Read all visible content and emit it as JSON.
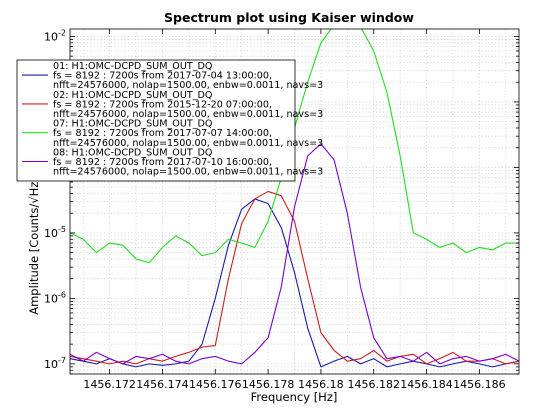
{
  "chart_data": {
    "type": "line",
    "title": "Spectrum plot using Kaiser window",
    "xlabel": "Frequency [Hz]",
    "ylabel": "Amplitude [Counts/√Hz]",
    "xlim": [
      1456.1705,
      1456.1875
    ],
    "ylim": [
      7e-08,
      0.013
    ],
    "yscale": "log",
    "grid": true,
    "legend_position": "top-left",
    "x_ticks": [
      {
        "value": 1456.172,
        "label": "1456.172"
      },
      {
        "value": 1456.174,
        "label": "1456.174"
      },
      {
        "value": 1456.176,
        "label": "1456.176"
      },
      {
        "value": 1456.178,
        "label": "1456.178"
      },
      {
        "value": 1456.18,
        "label": "1456.18"
      },
      {
        "value": 1456.182,
        "label": "1456.182"
      },
      {
        "value": 1456.184,
        "label": "1456.184"
      },
      {
        "value": 1456.186,
        "label": "1456.186"
      }
    ],
    "y_ticks": [
      {
        "value": 1e-07,
        "base": "10",
        "exp": "-7"
      },
      {
        "value": 1e-06,
        "base": "10",
        "exp": "-6"
      },
      {
        "value": 1e-05,
        "base": "10",
        "exp": "-5"
      },
      {
        "value": 0.0001,
        "base": "10",
        "exp": "-4"
      },
      {
        "value": 0.001,
        "base": "10",
        "exp": "-3"
      },
      {
        "value": 0.01,
        "base": "10",
        "exp": "-2"
      }
    ],
    "series": [
      {
        "name": "01: H1:OMC-DCPD_SUM_OUT_DQ",
        "legend_lines": [
          "01: H1:OMC-DCPD_SUM_OUT_DQ",
          "fs = 8192 : 7200s from 2017-07-04 13:00:00,",
          "nfft=24576000, nolap=1500.00, enbw=0.0011, navs=3"
        ],
        "color": "#1a1aa8",
        "x": [
          1456.1705,
          1456.171,
          1456.1715,
          1456.172,
          1456.1725,
          1456.173,
          1456.1735,
          1456.174,
          1456.1745,
          1456.175,
          1456.1755,
          1456.176,
          1456.1765,
          1456.177,
          1456.1775,
          1456.178,
          1456.1785,
          1456.179,
          1456.1795,
          1456.18,
          1456.1805,
          1456.181,
          1456.1815,
          1456.182,
          1456.1825,
          1456.183,
          1456.1835,
          1456.184,
          1456.1845,
          1456.185,
          1456.1855,
          1456.186,
          1456.1865,
          1456.187,
          1456.1875
        ],
        "values": [
          1.2e-07,
          1.1e-07,
          1e-07,
          1.2e-07,
          1e-07,
          9e-08,
          1e-07,
          9.5e-08,
          1e-07,
          1.1e-07,
          2e-07,
          1e-06,
          6.5e-06,
          2.3e-05,
          3.3e-05,
          2.8e-05,
          1.2e-05,
          2.5e-06,
          3.5e-07,
          9e-08,
          1.1e-07,
          1.3e-07,
          1e-07,
          1.2e-07,
          9e-08,
          1e-07,
          1.1e-07,
          1e-07,
          9e-08,
          1e-07,
          1.1e-07,
          1e-07,
          9e-08,
          1e-07,
          1.1e-07
        ]
      },
      {
        "name": "02: H1:OMC-DCPD_SUM_OUT_DQ",
        "legend_lines": [
          "02: H1:OMC-DCPD_SUM_OUT_DQ",
          "fs = 8192 : 7200s from 2015-12-20 07:00:00,",
          "nfft=24576000, nolap=1500.00, enbw=0.0011, navs=3"
        ],
        "color": "#c81e1e",
        "x": [
          1456.1705,
          1456.171,
          1456.1715,
          1456.172,
          1456.1725,
          1456.173,
          1456.1735,
          1456.174,
          1456.1745,
          1456.175,
          1456.1755,
          1456.176,
          1456.1765,
          1456.177,
          1456.1775,
          1456.178,
          1456.1785,
          1456.179,
          1456.1795,
          1456.18,
          1456.1805,
          1456.181,
          1456.1815,
          1456.182,
          1456.1825,
          1456.183,
          1456.1835,
          1456.184,
          1456.1845,
          1456.185,
          1456.1855,
          1456.186,
          1456.1865,
          1456.187,
          1456.1875
        ],
        "values": [
          1.3e-07,
          1.2e-07,
          1.1e-07,
          1e-07,
          1.1e-07,
          1e-07,
          1.2e-07,
          1.1e-07,
          1.3e-07,
          1.5e-07,
          1.8e-07,
          1.9e-07,
          2e-06,
          1.4e-05,
          3.3e-05,
          4.3e-05,
          3.7e-05,
          1.5e-05,
          2e-06,
          3e-07,
          1.6e-07,
          1.1e-07,
          1.2e-07,
          1.6e-07,
          1.1e-07,
          1.3e-07,
          1.4e-07,
          1e-07,
          1.2e-07,
          1.5e-07,
          1.1e-07,
          1.1e-07,
          1.2e-07,
          1e-07,
          1.1e-07
        ]
      },
      {
        "name": "07: H1:OMC-DCPD_SUM_OUT_DQ",
        "legend_lines": [
          "07: H1:OMC-DCPD_SUM_OUT_DQ",
          "fs = 8192 : 7200s from 2017-07-07 14:00:00,",
          "nfft=24576000, nolap=1500.00, enbw=0.0011, navs=3"
        ],
        "color": "#22dd22",
        "x": [
          1456.1705,
          1456.171,
          1456.1715,
          1456.172,
          1456.1725,
          1456.173,
          1456.1735,
          1456.174,
          1456.1745,
          1456.175,
          1456.1755,
          1456.176,
          1456.1765,
          1456.177,
          1456.1775,
          1456.178,
          1456.1785,
          1456.179,
          1456.1795,
          1456.18,
          1456.1805,
          1456.181,
          1456.1815,
          1456.182,
          1456.1825,
          1456.183,
          1456.1835,
          1456.184,
          1456.1845,
          1456.185,
          1456.1855,
          1456.186,
          1456.1865,
          1456.187,
          1456.1875
        ],
        "values": [
          1e-05,
          8e-06,
          5e-06,
          7e-06,
          6.5e-06,
          4e-06,
          3.5e-06,
          6e-06,
          9e-06,
          7e-06,
          4.5e-06,
          5e-06,
          8e-06,
          7e-06,
          6e-06,
          1.5e-05,
          7e-05,
          0.0004,
          0.002,
          0.008,
          0.015,
          0.019,
          0.014,
          0.006,
          0.0014,
          0.00015,
          1e-05,
          8e-06,
          6e-06,
          7e-06,
          5e-06,
          6e-06,
          5.5e-06,
          7e-06,
          7e-06
        ]
      },
      {
        "name": "08: H1:OMC-DCPD_SUM_OUT_DQ",
        "legend_lines": [
          "08: H1:OMC-DCPD_SUM_OUT_DQ",
          "fs = 8192 : 7200s from 2017-07-10 16:00:00,",
          "nfft=24576000, nolap=1500.00, enbw=0.0011, navs=3"
        ],
        "color": "#7a00cc",
        "x": [
          1456.1705,
          1456.171,
          1456.1715,
          1456.172,
          1456.1725,
          1456.173,
          1456.1735,
          1456.174,
          1456.1745,
          1456.175,
          1456.1755,
          1456.176,
          1456.1765,
          1456.177,
          1456.1775,
          1456.178,
          1456.1785,
          1456.179,
          1456.1795,
          1456.18,
          1456.1805,
          1456.181,
          1456.1815,
          1456.182,
          1456.1825,
          1456.183,
          1456.1835,
          1456.184,
          1456.1845,
          1456.185,
          1456.1855,
          1456.186,
          1456.1865,
          1456.187,
          1456.1875
        ],
        "values": [
          1.4e-07,
          1.1e-07,
          1.5e-07,
          1.2e-07,
          1e-07,
          1.3e-07,
          1.2e-07,
          1.4e-07,
          1.1e-07,
          1e-07,
          1.2e-07,
          1.3e-07,
          1.1e-07,
          1e-07,
          1.5e-07,
          2.5e-07,
          1.5e-06,
          2.5e-05,
          0.00015,
          0.00023,
          0.00013,
          2e-05,
          1.5e-06,
          2.5e-07,
          1.2e-07,
          1.3e-07,
          1.1e-07,
          1.5e-07,
          1e-07,
          1.2e-07,
          1.3e-07,
          1.1e-07,
          1.2e-07,
          1.4e-07,
          1.1e-07
        ]
      }
    ]
  }
}
